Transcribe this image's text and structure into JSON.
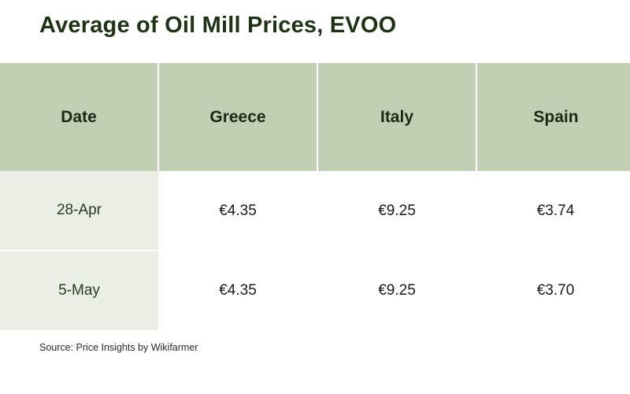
{
  "title": "Average of Oil Mill Prices, EVOO",
  "table": {
    "headers": [
      "Date",
      "Greece",
      "Italy",
      "Spain"
    ],
    "rows": [
      {
        "date": "28-Apr",
        "greece": "€4.35",
        "italy": "€9.25",
        "spain": "€3.74"
      },
      {
        "date": "5-May",
        "greece": "€4.35",
        "italy": "€9.25",
        "spain": "€3.70"
      }
    ]
  },
  "colors": {
    "title": "#1d3313",
    "header_bg": "#c1d0b3",
    "date_col_bg": "#ebeee5"
  },
  "source": "Source: Price Insights by Wikifarmer"
}
